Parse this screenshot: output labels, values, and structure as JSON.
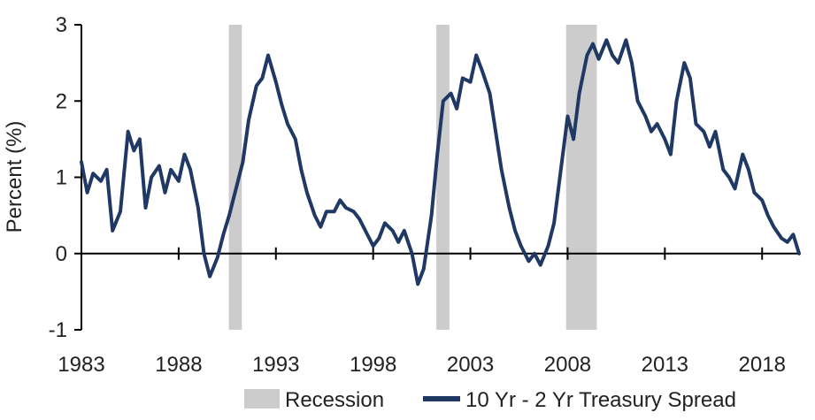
{
  "chart_data": {
    "type": "line",
    "title": "",
    "xlabel": "",
    "ylabel": "Percent (%)",
    "xlim": [
      1983,
      2019.9
    ],
    "ylim": [
      -1,
      3
    ],
    "x_ticks": [
      1983,
      1988,
      1993,
      1998,
      2003,
      2008,
      2013,
      2018
    ],
    "y_ticks": [
      -1,
      0,
      1,
      2,
      3
    ],
    "legend_position": "bottom-right",
    "colors": {
      "series": "#1f3864",
      "recession": "#cccccc",
      "axis": "#000000"
    },
    "legend": [
      {
        "label": "Recession",
        "kind": "shade"
      },
      {
        "label": "10 Yr - 2 Yr Treasury Spread",
        "kind": "line"
      }
    ],
    "recessions": [
      {
        "start": 1990.58,
        "end": 1991.25
      },
      {
        "start": 2001.25,
        "end": 2001.92
      },
      {
        "start": 2007.92,
        "end": 2009.5
      }
    ],
    "series": [
      {
        "name": "10 Yr - 2 Yr Treasury Spread",
        "x": [
          1983.0,
          1983.3,
          1983.6,
          1984.0,
          1984.3,
          1984.6,
          1985.0,
          1985.4,
          1985.7,
          1986.0,
          1986.3,
          1986.6,
          1987.0,
          1987.3,
          1987.6,
          1988.0,
          1988.3,
          1988.6,
          1989.0,
          1989.3,
          1989.6,
          1990.0,
          1990.3,
          1990.6,
          1991.0,
          1991.3,
          1991.6,
          1992.0,
          1992.3,
          1992.6,
          1993.0,
          1993.3,
          1993.6,
          1994.0,
          1994.3,
          1994.6,
          1995.0,
          1995.3,
          1995.6,
          1996.0,
          1996.3,
          1996.6,
          1997.0,
          1997.3,
          1997.6,
          1998.0,
          1998.3,
          1998.6,
          1999.0,
          1999.3,
          1999.6,
          2000.0,
          2000.3,
          2000.6,
          2001.0,
          2001.3,
          2001.6,
          2002.0,
          2002.3,
          2002.6,
          2003.0,
          2003.3,
          2003.6,
          2004.0,
          2004.3,
          2004.6,
          2005.0,
          2005.3,
          2005.6,
          2006.0,
          2006.3,
          2006.6,
          2007.0,
          2007.3,
          2007.6,
          2008.0,
          2008.3,
          2008.6,
          2009.0,
          2009.3,
          2009.6,
          2010.0,
          2010.3,
          2010.6,
          2011.0,
          2011.3,
          2011.6,
          2012.0,
          2012.3,
          2012.6,
          2013.0,
          2013.3,
          2013.6,
          2014.0,
          2014.3,
          2014.6,
          2015.0,
          2015.3,
          2015.6,
          2016.0,
          2016.3,
          2016.6,
          2017.0,
          2017.3,
          2017.6,
          2018.0,
          2018.3,
          2018.6,
          2019.0,
          2019.3,
          2019.6,
          2019.9
        ],
        "values": [
          1.2,
          0.8,
          1.05,
          0.95,
          1.1,
          0.3,
          0.55,
          1.6,
          1.35,
          1.5,
          0.6,
          1.0,
          1.15,
          0.8,
          1.1,
          0.95,
          1.3,
          1.1,
          0.6,
          0.0,
          -0.3,
          -0.05,
          0.25,
          0.5,
          0.9,
          1.2,
          1.75,
          2.2,
          2.3,
          2.6,
          2.25,
          1.95,
          1.7,
          1.5,
          1.1,
          0.8,
          0.5,
          0.35,
          0.55,
          0.55,
          0.7,
          0.6,
          0.55,
          0.45,
          0.3,
          0.1,
          0.2,
          0.4,
          0.3,
          0.15,
          0.3,
          0.0,
          -0.4,
          -0.2,
          0.5,
          1.3,
          2.0,
          2.1,
          1.9,
          2.3,
          2.25,
          2.6,
          2.4,
          2.1,
          1.6,
          1.1,
          0.6,
          0.3,
          0.1,
          -0.1,
          0.0,
          -0.15,
          0.1,
          0.4,
          1.0,
          1.8,
          1.5,
          2.1,
          2.6,
          2.75,
          2.55,
          2.8,
          2.6,
          2.5,
          2.8,
          2.5,
          2.0,
          1.8,
          1.6,
          1.7,
          1.5,
          1.3,
          2.0,
          2.5,
          2.3,
          1.7,
          1.6,
          1.4,
          1.6,
          1.1,
          1.0,
          0.85,
          1.3,
          1.1,
          0.8,
          0.7,
          0.5,
          0.35,
          0.2,
          0.15,
          0.25,
          0.0
        ]
      }
    ]
  }
}
